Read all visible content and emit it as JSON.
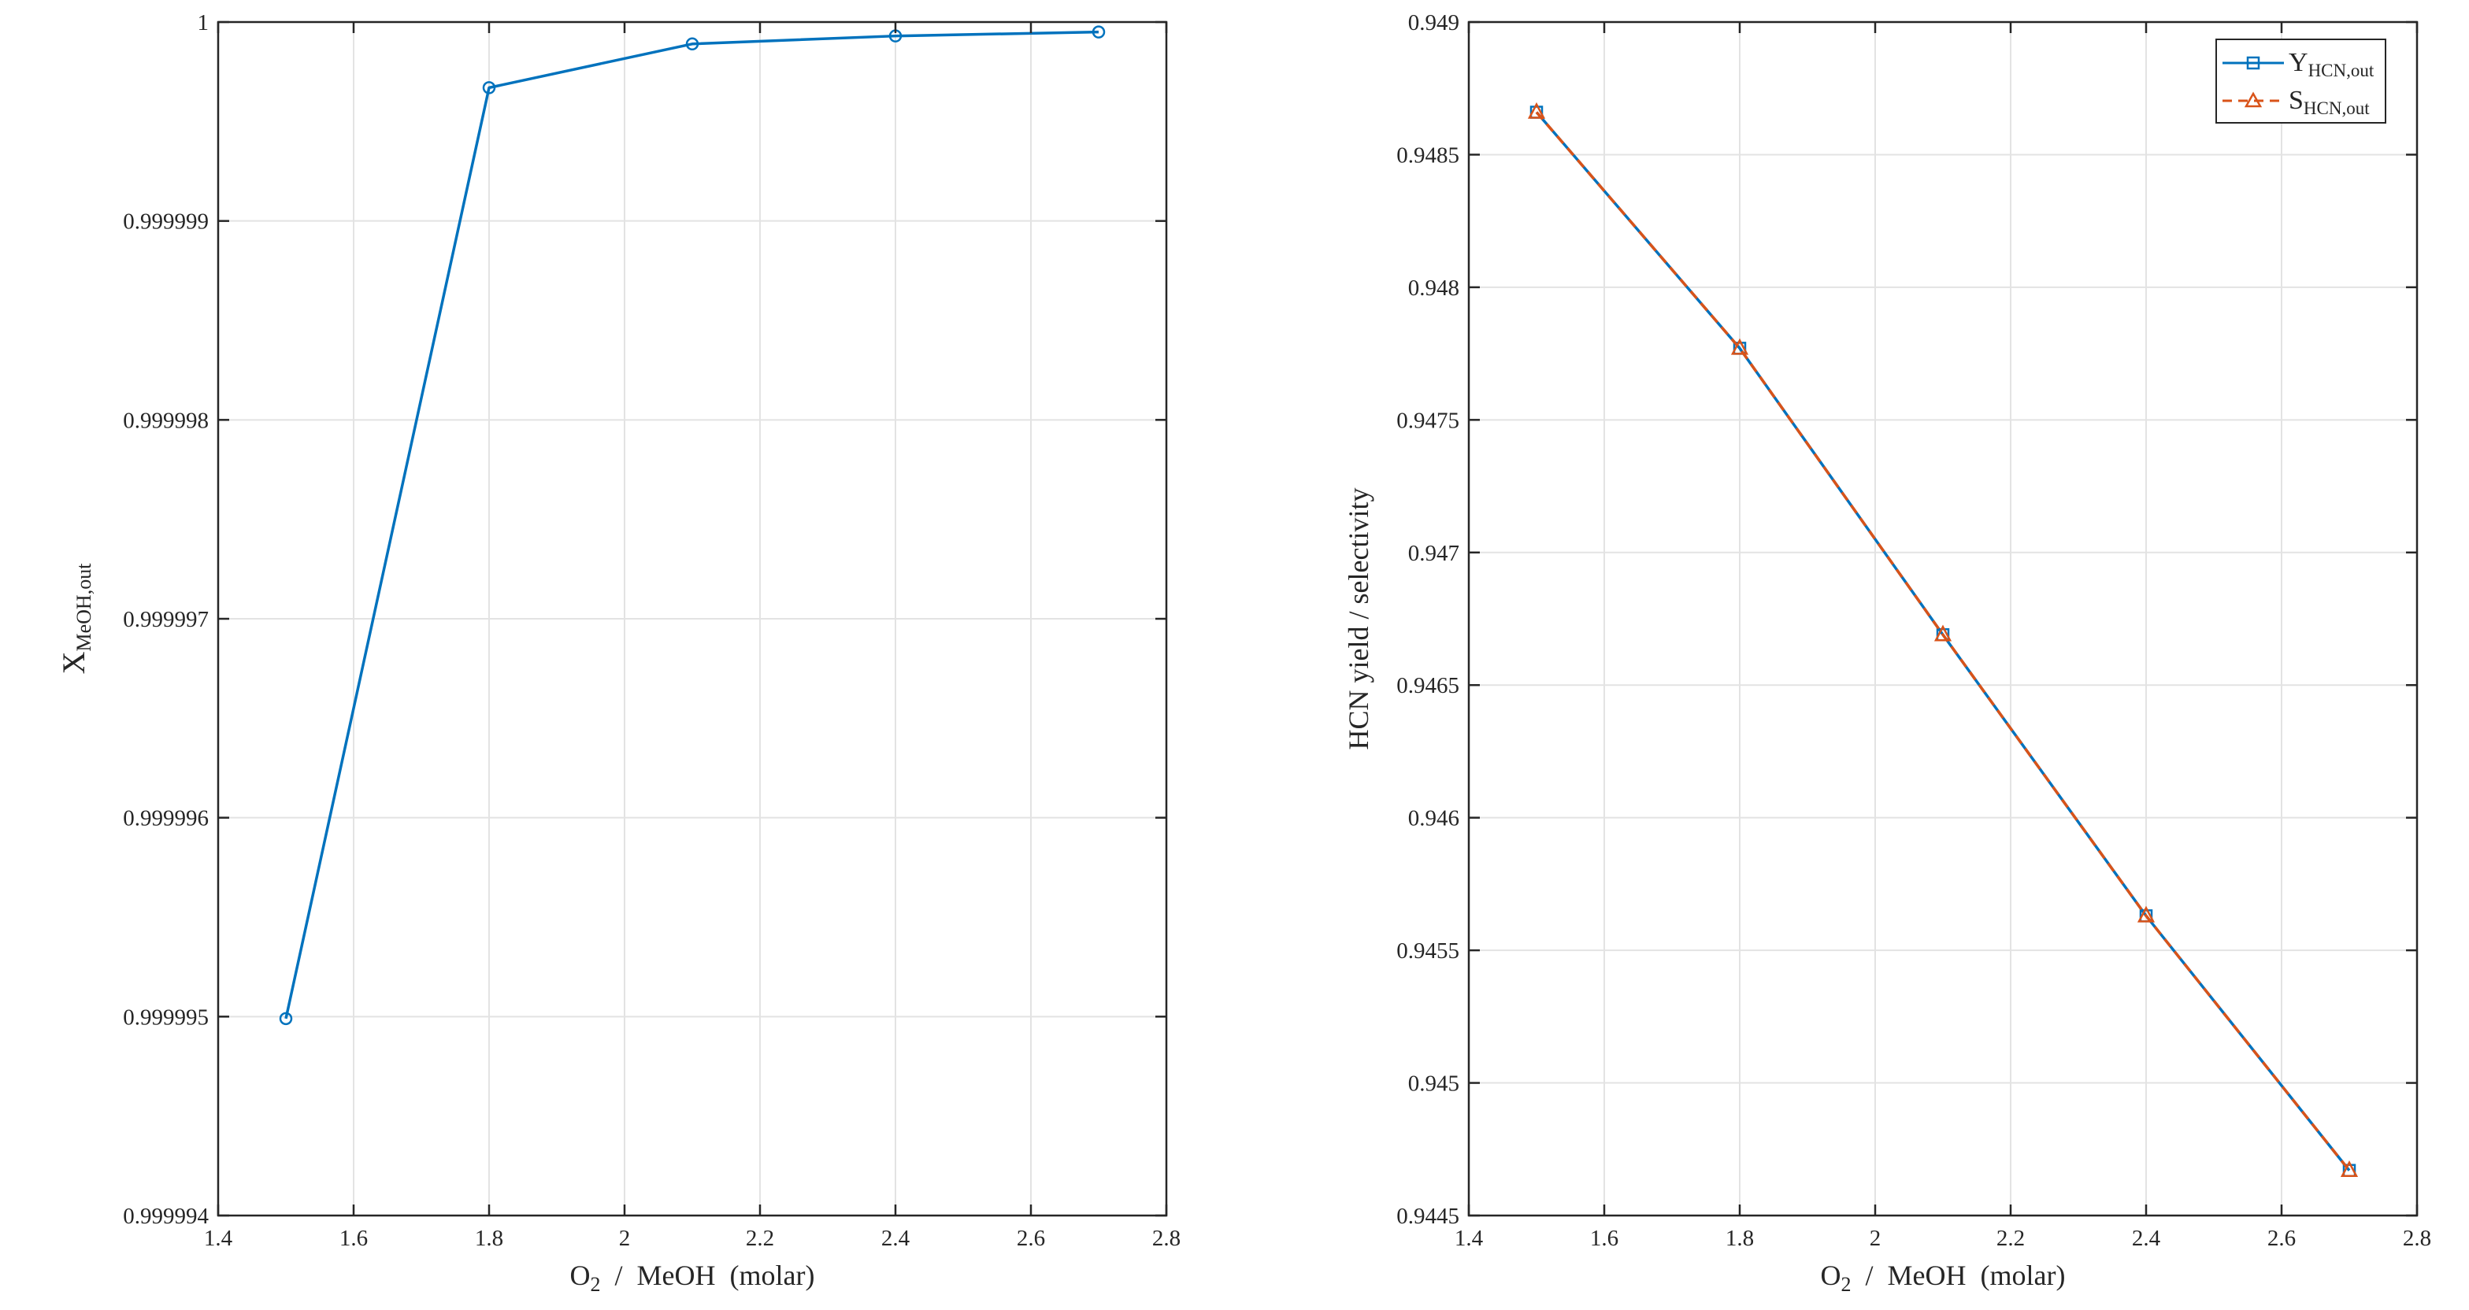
{
  "chart_data": [
    {
      "type": "line",
      "xlabel_parts": [
        "O",
        "2",
        "  /  MeOH  (molar)"
      ],
      "ylabel_parts": [
        "X",
        "MeOH,out"
      ],
      "xlim": [
        1.4,
        2.8
      ],
      "ylim": [
        0.999994,
        1.0
      ],
      "x_ticks": [
        1.4,
        1.6,
        1.8,
        2,
        2.2,
        2.4,
        2.6,
        2.8
      ],
      "x_tick_labels": [
        "1.4",
        "1.6",
        "1.8",
        "2",
        "2.2",
        "2.4",
        "2.6",
        "2.8"
      ],
      "y_ticks": [
        0.999994,
        0.999995,
        0.999996,
        0.999997,
        0.999998,
        0.999999,
        1.0
      ],
      "y_tick_labels": [
        "0.999994",
        "0.999995",
        "0.999996",
        "0.999997",
        "0.999998",
        "0.999999",
        "1"
      ],
      "grid": true,
      "series": [
        {
          "x": [
            1.5,
            1.8,
            2.1,
            2.4,
            2.7
          ],
          "values": [
            0.99999499,
            0.99999967,
            0.99999989,
            0.99999993,
            0.99999995
          ],
          "color": "#0072BD",
          "marker": "circle",
          "line_style": "solid"
        }
      ]
    },
    {
      "type": "line",
      "xlabel_parts": [
        "O",
        "2",
        "  /  MeOH  (molar)"
      ],
      "ylabel": "HCN yield / selectivity",
      "xlim": [
        1.4,
        2.8
      ],
      "ylim": [
        0.9445,
        0.949
      ],
      "x_ticks": [
        1.4,
        1.6,
        1.8,
        2,
        2.2,
        2.4,
        2.6,
        2.8
      ],
      "x_tick_labels": [
        "1.4",
        "1.6",
        "1.8",
        "2",
        "2.2",
        "2.4",
        "2.6",
        "2.8"
      ],
      "y_ticks": [
        0.9445,
        0.945,
        0.9455,
        0.946,
        0.9465,
        0.947,
        0.9475,
        0.948,
        0.9485,
        0.949
      ],
      "y_tick_labels": [
        "0.9445",
        "0.945",
        "0.9455",
        "0.946",
        "0.9465",
        "0.947",
        "0.9475",
        "0.948",
        "0.9485",
        "0.949"
      ],
      "grid": true,
      "legend_placement": "top-right",
      "series": [
        {
          "name_parts": [
            "Y",
            "HCN,out"
          ],
          "x": [
            1.5,
            1.8,
            2.1,
            2.4,
            2.7
          ],
          "values": [
            0.94866,
            0.94777,
            0.94669,
            0.94563,
            0.94467
          ],
          "color": "#0072BD",
          "marker": "square",
          "line_style": "solid"
        },
        {
          "name_parts": [
            "S",
            "HCN,out"
          ],
          "x": [
            1.5,
            1.8,
            2.1,
            2.4,
            2.7
          ],
          "values": [
            0.94866,
            0.94777,
            0.94669,
            0.94563,
            0.94467
          ],
          "color": "#D95319",
          "marker": "triangle",
          "line_style": "dashed"
        }
      ]
    }
  ]
}
